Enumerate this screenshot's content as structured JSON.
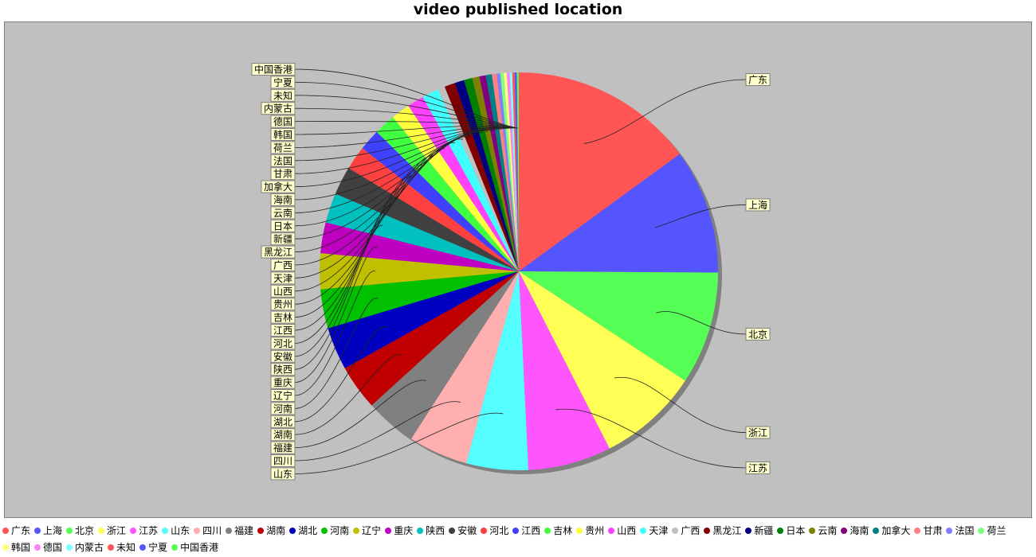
{
  "chart_data": {
    "type": "pie",
    "title": "video published location",
    "legend_position": "bottom",
    "slices": [
      {
        "label": "广东",
        "value": 15.5,
        "color": "#ff5555",
        "side": "right"
      },
      {
        "label": "上海",
        "value": 10.5,
        "color": "#5555ff",
        "side": "right"
      },
      {
        "label": "北京",
        "value": 9.5,
        "color": "#55ff55",
        "side": "right"
      },
      {
        "label": "浙江",
        "value": 8.5,
        "color": "#ffff55",
        "side": "right"
      },
      {
        "label": "江苏",
        "value": 7.0,
        "color": "#ff55ff",
        "side": "right"
      },
      {
        "label": "山东",
        "value": 5.2,
        "color": "#55ffff",
        "side": "left"
      },
      {
        "label": "四川",
        "value": 5.0,
        "color": "#ffafaf",
        "side": "left"
      },
      {
        "label": "福建",
        "value": 4.3,
        "color": "#808080",
        "side": "left"
      },
      {
        "label": "湖南",
        "value": 3.8,
        "color": "#c00000",
        "side": "left"
      },
      {
        "label": "湖北",
        "value": 3.6,
        "color": "#0000c0",
        "side": "left"
      },
      {
        "label": "河南",
        "value": 3.3,
        "color": "#00c000",
        "side": "left"
      },
      {
        "label": "辽宁",
        "value": 3.0,
        "color": "#c0c000",
        "side": "left"
      },
      {
        "label": "重庆",
        "value": 2.6,
        "color": "#c000c0",
        "side": "left"
      },
      {
        "label": "陕西",
        "value": 2.5,
        "color": "#00c0c0",
        "side": "left"
      },
      {
        "label": "安徽",
        "value": 2.4,
        "color": "#404040",
        "side": "left"
      },
      {
        "label": "河北",
        "value": 2.0,
        "color": "#ff4040",
        "side": "left"
      },
      {
        "label": "江西",
        "value": 1.8,
        "color": "#4040ff",
        "side": "left"
      },
      {
        "label": "吉林",
        "value": 1.8,
        "color": "#40ff40",
        "side": "left"
      },
      {
        "label": "贵州",
        "value": 1.6,
        "color": "#ffff40",
        "side": "left"
      },
      {
        "label": "山西",
        "value": 1.4,
        "color": "#ff40ff",
        "side": "left"
      },
      {
        "label": "天津",
        "value": 1.4,
        "color": "#40ffff",
        "side": "left"
      },
      {
        "label": "广西",
        "value": 0.6,
        "color": "#c0c0c0",
        "side": "left"
      },
      {
        "label": "黑龙江",
        "value": 0.9,
        "color": "#800000",
        "side": "left"
      },
      {
        "label": "新疆",
        "value": 0.8,
        "color": "#000080",
        "side": "left"
      },
      {
        "label": "日本",
        "value": 0.7,
        "color": "#008000",
        "side": "left"
      },
      {
        "label": "云南",
        "value": 0.6,
        "color": "#808000",
        "side": "left"
      },
      {
        "label": "海南",
        "value": 0.55,
        "color": "#800080",
        "side": "left"
      },
      {
        "label": "加拿大",
        "value": 0.5,
        "color": "#008080",
        "side": "left"
      },
      {
        "label": "甘肃",
        "value": 0.4,
        "color": "#ff8080",
        "side": "left"
      },
      {
        "label": "法国",
        "value": 0.3,
        "color": "#8080ff",
        "side": "left"
      },
      {
        "label": "荷兰",
        "value": 0.28,
        "color": "#80ff80",
        "side": "left"
      },
      {
        "label": "韩国",
        "value": 0.26,
        "color": "#ffff80",
        "side": "left"
      },
      {
        "label": "德国",
        "value": 0.24,
        "color": "#ff80ff",
        "side": "left"
      },
      {
        "label": "内蒙古",
        "value": 0.22,
        "color": "#80ffff",
        "side": "left"
      },
      {
        "label": "未知",
        "value": 0.2,
        "color": "#ff5555",
        "side": "left"
      },
      {
        "label": "宁夏",
        "value": 0.18,
        "color": "#5555ff",
        "side": "left"
      },
      {
        "label": "中国香港",
        "value": 0.16,
        "color": "#55ff55",
        "side": "left"
      }
    ]
  }
}
